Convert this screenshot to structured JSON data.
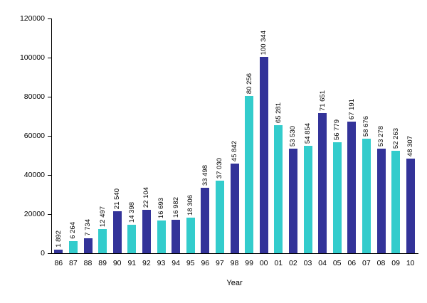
{
  "chart_data": {
    "type": "bar",
    "title": "",
    "xlabel": "Year",
    "ylabel": "",
    "ylim": [
      0,
      120000
    ],
    "ytick_step": 20000,
    "ytick_labels": [
      "0",
      "20000",
      "40000",
      "60000",
      "80000",
      "100000",
      "120000"
    ],
    "grid": false,
    "legend": false,
    "categories": [
      "86",
      "87",
      "88",
      "89",
      "90",
      "91",
      "92",
      "93",
      "94",
      "95",
      "96",
      "97",
      "98",
      "99",
      "00",
      "01",
      "02",
      "03",
      "04",
      "05",
      "06",
      "07",
      "08",
      "09",
      "10"
    ],
    "values": [
      1892,
      6264,
      7734,
      12497,
      21540,
      14398,
      22104,
      16693,
      16982,
      18306,
      33498,
      37030,
      45842,
      80256,
      100344,
      65281,
      53530,
      54854,
      71651,
      56779,
      67191,
      58676,
      53278,
      52263,
      48307
    ],
    "value_labels": [
      "1 892",
      "6 264",
      "7 734",
      "12 497",
      "21 540",
      "14 398",
      "22 104",
      "16 693",
      "16 982",
      "18 306",
      "33 498",
      "37 030",
      "45 842",
      "80 256",
      "100 344",
      "65 281",
      "53 530",
      "54 854",
      "71 651",
      "56 779",
      "67 191",
      "58 676",
      "53 278",
      "52 263",
      "48 307"
    ],
    "bar_colors": [
      "#333399",
      "#33CCCC"
    ],
    "color_pattern": "alternating",
    "axis_color": "#000000",
    "text_color": "#000000",
    "background_color": "#FFFFFF"
  }
}
